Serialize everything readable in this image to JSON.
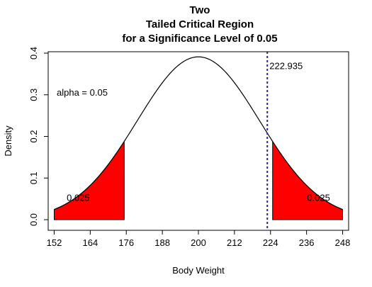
{
  "chart_data": {
    "type": "line",
    "title_lines": [
      "Two",
      "Tailed Critical Region",
      "for a Significance Level of 0.05"
    ],
    "xlabel": "Body Weight",
    "ylabel": "Density",
    "xlim": [
      150,
      250
    ],
    "ylim": [
      0,
      0.4
    ],
    "x_ticks": [
      152,
      164,
      176,
      188,
      200,
      212,
      224,
      236,
      248
    ],
    "y_ticks": [
      0.0,
      0.1,
      0.2,
      0.3,
      0.4
    ],
    "x_tick_labels": [
      "152",
      "164",
      "176",
      "188",
      "200",
      "212",
      "224",
      "236",
      "248"
    ],
    "y_tick_labels": [
      "0.0",
      "0.1",
      "0.2",
      "0.3",
      "0.4"
    ],
    "series": [
      {
        "distribution": "normal",
        "mean": 200,
        "sd": 1.02,
        "x_range": [
          152,
          248
        ],
        "color": "#000000"
      }
    ],
    "critical_regions": [
      {
        "from": 152,
        "to": 175.3,
        "color": "#ff0000",
        "label": "0.025",
        "label_at": [
          160,
          0.045
        ]
      },
      {
        "from": 224.7,
        "to": 248,
        "color": "#ff0000",
        "label": "0.025",
        "label_at": [
          240,
          0.045
        ]
      }
    ],
    "vline": {
      "x": 222.935,
      "label": "222.935",
      "color": "#2222aa"
    },
    "annotations": [
      {
        "text": "alpha = 0.05",
        "x": 160,
        "y": 0.305
      }
    ],
    "grid": false,
    "legend": "none"
  }
}
